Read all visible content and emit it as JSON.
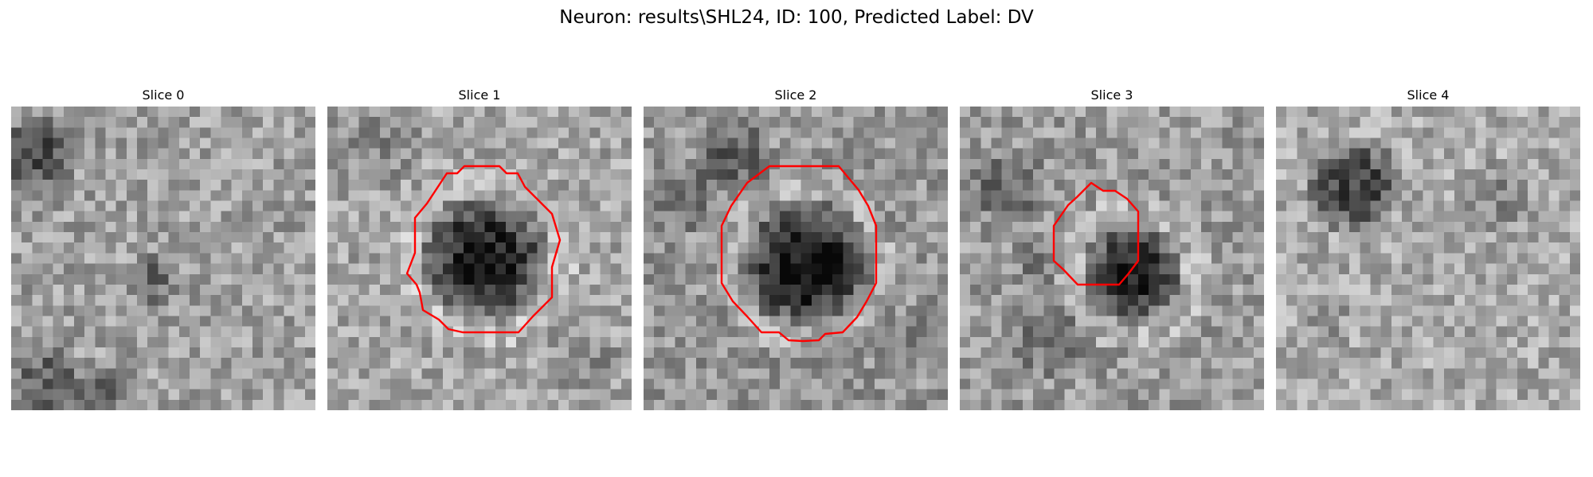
{
  "figure": {
    "title": "Neuron: results\\SHL24, ID: 100, Predicted Label: DV"
  },
  "slices": [
    {
      "title": "Slice 0",
      "has_contour": false
    },
    {
      "title": "Slice 1",
      "has_contour": true
    },
    {
      "title": "Slice 2",
      "has_contour": true
    },
    {
      "title": "Slice 3",
      "has_contour": true
    },
    {
      "title": "Slice 4",
      "has_contour": false
    }
  ],
  "colors": {
    "contour": "#ff0000",
    "background": "#ffffff"
  }
}
